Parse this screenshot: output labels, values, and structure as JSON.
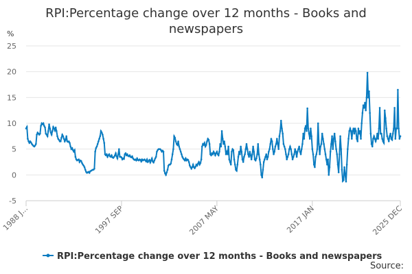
{
  "chart_data": {
    "type": "line",
    "title": "RPI:Percentage change over 12 months - Books and newspapers",
    "y_label": "%",
    "source": "Source:",
    "ylim": [
      -5,
      25
    ],
    "yticks": [
      -5,
      0,
      5,
      10,
      15,
      20,
      25
    ],
    "grid": true,
    "categories": [
      "1988 J...",
      null,
      null,
      null,
      null,
      null,
      null,
      null,
      null,
      null,
      null,
      null,
      null,
      null,
      null,
      null,
      null,
      null,
      null,
      null,
      null,
      null,
      null,
      null,
      null,
      null,
      null,
      null,
      null,
      null,
      null,
      null,
      null,
      null,
      null,
      null,
      null,
      null,
      null,
      null,
      null,
      null,
      null,
      null,
      null,
      null,
      null,
      null,
      null,
      null,
      null,
      null,
      null,
      null,
      null,
      null,
      null,
      null,
      null,
      null,
      null,
      null,
      null,
      null,
      null,
      null,
      null,
      null,
      null,
      null,
      null,
      null,
      null,
      null,
      null,
      null,
      null,
      null,
      null,
      null,
      null,
      null,
      null,
      null,
      null,
      null,
      null,
      null,
      null,
      null,
      null,
      null,
      null,
      null,
      null,
      null,
      null,
      null,
      null,
      null,
      null,
      null,
      null,
      null,
      null,
      null,
      null,
      null,
      null,
      null,
      null,
      null,
      null,
      null,
      null,
      null,
      "1997 SEP",
      null,
      null,
      null,
      null,
      null,
      null,
      null,
      null,
      null,
      null,
      null,
      null,
      null,
      null,
      null,
      null,
      null,
      null,
      null,
      null,
      null,
      null,
      null,
      null,
      null,
      null,
      null,
      null,
      null,
      null,
      null,
      null,
      null,
      null,
      null,
      null,
      null,
      null,
      null,
      null,
      null,
      null,
      null,
      null,
      null,
      null,
      null,
      null,
      null,
      null,
      null,
      null,
      null,
      null,
      null,
      null,
      null,
      null,
      null,
      null,
      null,
      null,
      null,
      null,
      null,
      null,
      null,
      null,
      null,
      null,
      null,
      null,
      null,
      null,
      null,
      null,
      null,
      null,
      null,
      null,
      null,
      null,
      null,
      null,
      null,
      null,
      null,
      null,
      null,
      null,
      null,
      null,
      null,
      null,
      null,
      null,
      null,
      null,
      null,
      null,
      null,
      null,
      null,
      null,
      null,
      null,
      null,
      null,
      null,
      null,
      null,
      null,
      null,
      null,
      null,
      "2007 MAY",
      null,
      null,
      null,
      null,
      null,
      null,
      null,
      null,
      null,
      null,
      null,
      null,
      null,
      null,
      null,
      null,
      null,
      null,
      null,
      null,
      null,
      null,
      null,
      null,
      null,
      null,
      null,
      null,
      null,
      null,
      null,
      null,
      null,
      null,
      null,
      null,
      null,
      null,
      null,
      null,
      null,
      null,
      null,
      null,
      null,
      null,
      null,
      null,
      null,
      null,
      null,
      null,
      null,
      null,
      null,
      null,
      null,
      null,
      null,
      null,
      null,
      null,
      null,
      null,
      null,
      null,
      null,
      null,
      null,
      null,
      null,
      null,
      null,
      null,
      null,
      null,
      null,
      null,
      null,
      null,
      null,
      null,
      null,
      null,
      null,
      null,
      null,
      null,
      null,
      null,
      null,
      null,
      null,
      null,
      null,
      null,
      null,
      null,
      null,
      null,
      null,
      null,
      null,
      null,
      null,
      null,
      null,
      null,
      null,
      null,
      null,
      null,
      null,
      null,
      null,
      "2017 JAN",
      null,
      null,
      null,
      null,
      null,
      null,
      null,
      null,
      null,
      null,
      null,
      null,
      null,
      null,
      null,
      null,
      null,
      null,
      null,
      null,
      null,
      null,
      null,
      null,
      null,
      null,
      null,
      null,
      null,
      null,
      null,
      null,
      null,
      null,
      null,
      null,
      null,
      null,
      null,
      null,
      null,
      null,
      null,
      null,
      null,
      null,
      null,
      null,
      null,
      null,
      null,
      null,
      null,
      null,
      null,
      null,
      null,
      null,
      null,
      null,
      null,
      null,
      null,
      null,
      null,
      null,
      null,
      null,
      null,
      null,
      null,
      null,
      null,
      null,
      null,
      null,
      null,
      null,
      null,
      null,
      null,
      null,
      null,
      null,
      null,
      null,
      null,
      null,
      null,
      null,
      null,
      null,
      null,
      null,
      null,
      null,
      null,
      null,
      null,
      null,
      null,
      null,
      null,
      null,
      null,
      null,
      "2025 DEC"
    ],
    "series": [
      {
        "name": "RPI:Percentage change over 12 months - Books and newspapers",
        "color": "#0b7cc1",
        "values": [
          9,
          9.3,
          7,
          6.5,
          6.2,
          6.5,
          6.3,
          6,
          5.8,
          5.6,
          5.5,
          5.7,
          6,
          7.8,
          8.2,
          8,
          7.8,
          8,
          9.5,
          10,
          9.8,
          10,
          9.5,
          9.2,
          8,
          7.8,
          7.5,
          8.5,
          9.8,
          9,
          8.2,
          7.8,
          8.5,
          9.3,
          9,
          8.6,
          9.2,
          8.5,
          7.5,
          7,
          6.8,
          6.5,
          6.5,
          7.2,
          7.8,
          7.5,
          7,
          6.5,
          6.8,
          7.5,
          6.5,
          6.4,
          6.5,
          6.2,
          5.5,
          5,
          5.2,
          4.8,
          4.5,
          4.8,
          3.5,
          3,
          2.8,
          2.9,
          3,
          2.5,
          2.8,
          2.7,
          2.3,
          2,
          1.8,
          1.5,
          1,
          0.6,
          0.4,
          0.5,
          0.6,
          0.4,
          0.7,
          0.8,
          0.9,
          1,
          1,
          1.2,
          4.5,
          5.2,
          5.5,
          6,
          6.5,
          7,
          7.5,
          8.5,
          8.2,
          7.8,
          7,
          6.2,
          4,
          3.8,
          4,
          3.5,
          3.8,
          4,
          3.6,
          3.5,
          3.8,
          3.4,
          3.3,
          3.5,
          3.8,
          4.2,
          3.6,
          3.2,
          4,
          5,
          3.5,
          3.5,
          3.4,
          3,
          3.2,
          3.1,
          4,
          4.2,
          3.8,
          4,
          3.7,
          3.6,
          3.8,
          3.5,
          3.4,
          3.6,
          3.2,
          3,
          2.9,
          3,
          2.8,
          3.2,
          2.9,
          2.8,
          3,
          2.9,
          2.6,
          3,
          2.8,
          2.9,
          3,
          2.8,
          2.6,
          3,
          2.5,
          2.7,
          2.9,
          2.4,
          2.8,
          3.2,
          2.6,
          2.4,
          2.8,
          3.2,
          3.5,
          4.5,
          4.8,
          5,
          5,
          5,
          4.8,
          4.5,
          4.7,
          4.5,
          0.8,
          0.3,
          0,
          0.5,
          1,
          1.8,
          2,
          2,
          2.2,
          3,
          4,
          5,
          7.5,
          7.2,
          6.5,
          6,
          5.8,
          6.5,
          5.5,
          5,
          4.5,
          4,
          3.5,
          3.2,
          3,
          2.8,
          3.2,
          2.8,
          3,
          2.9,
          2.5,
          1.8,
          1.5,
          1.2,
          1.5,
          2,
          1.5,
          1.3,
          1.6,
          2,
          1.8,
          2.2,
          2.5,
          2,
          2.3,
          3,
          5.5,
          6,
          5.8,
          6.2,
          5.5,
          5.8,
          6.5,
          7,
          6.8,
          6,
          4,
          3.8,
          4.2,
          4,
          4.5,
          4.2,
          3.8,
          4.2,
          4.5,
          4,
          3.8,
          4.5,
          6,
          5.5,
          8.5,
          7,
          6,
          6.5,
          5.5,
          4,
          4.5,
          4,
          5.5,
          3,
          2.5,
          2,
          4.5,
          5,
          4.8,
          3,
          2,
          1,
          0.8,
          2,
          3.5,
          4.5,
          4,
          5.5,
          4.5,
          3,
          2.5,
          3.5,
          4,
          5,
          6,
          5,
          4,
          3.5,
          4.5,
          3.8,
          3,
          4,
          5.5,
          4.5,
          3,
          2.8,
          3.2,
          4,
          6,
          4,
          3,
          2,
          0,
          -0.5,
          1,
          2.5,
          3,
          3.5,
          4,
          3,
          3.5,
          4.5,
          5,
          6,
          7,
          6.5,
          5,
          4,
          4.5,
          5.5,
          6,
          7,
          6,
          5,
          7.5,
          8.5,
          10.5,
          9,
          8,
          6,
          5.5,
          5,
          4,
          3,
          3.5,
          4,
          5,
          5.5,
          5,
          4,
          3,
          3.5,
          4,
          5,
          4.5,
          3.5,
          4.5,
          5,
          5.5,
          4.5,
          4,
          5,
          6,
          8,
          7,
          9,
          9.5,
          8.5,
          12.9,
          9,
          8,
          7,
          9,
          7.5,
          5,
          4,
          2,
          1.5,
          3.5,
          4,
          5,
          10,
          6,
          4,
          5.5,
          6,
          8,
          7,
          6,
          5,
          4,
          3,
          2,
          3,
          0,
          1.5,
          4.5,
          6,
          7.5,
          5,
          7,
          8,
          6.5,
          5,
          4,
          2,
          0.5,
          4,
          7.5,
          5,
          1,
          -1.2,
          -1,
          1.5,
          0,
          -1.3,
          2,
          5,
          7,
          8.5,
          9,
          8.5,
          7,
          8.5,
          9,
          8,
          9,
          8.5,
          7,
          6.5,
          9,
          8,
          8.5,
          7,
          10,
          12,
          13.5,
          13,
          14,
          12.5,
          15,
          19.8,
          15,
          16.2,
          12,
          8,
          6,
          5.5,
          7,
          7.5,
          7,
          6.5,
          7,
          8,
          7,
          9,
          13,
          8,
          8,
          7,
          6.5,
          6.2,
          12.5,
          11,
          9,
          7.5,
          7,
          6.5,
          7.5,
          8,
          7,
          6.8,
          8,
          9,
          13,
          7,
          9,
          9,
          16.5,
          9,
          7,
          7.5
        ]
      }
    ]
  }
}
